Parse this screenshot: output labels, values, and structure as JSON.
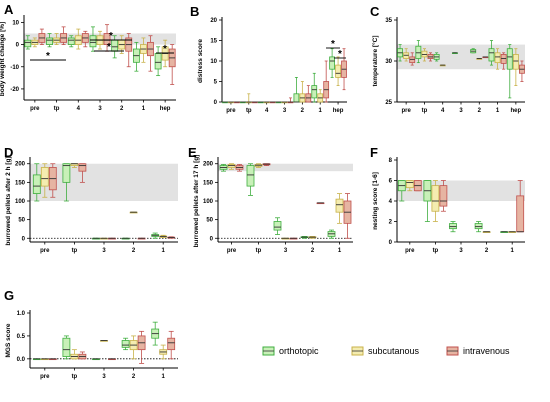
{
  "legend": [
    {
      "label": "orthotopic",
      "fill": "#c8f0b8",
      "stroke": "#3fae3f"
    },
    {
      "label": "subcutanous",
      "fill": "#f4ecb0",
      "stroke": "#c8b24a"
    },
    {
      "label": "intravenous",
      "fill": "#e6b4a2",
      "stroke": "#c0504d"
    }
  ],
  "chart_data": [
    {
      "panel": "A",
      "type": "box",
      "ylabel": "body weight change [%]",
      "ylim": [
        -25,
        12
      ],
      "yticks": [
        -20,
        -10,
        0,
        10
      ],
      "categories": [
        "pre",
        "tp",
        "4",
        "3",
        "2",
        "1",
        "hep"
      ],
      "band": [
        0,
        5
      ],
      "significance": [
        {
          "text": "*",
          "from": 0,
          "to": 0
        },
        {
          "text": "*",
          "from": 3,
          "to": 3
        },
        {
          "text": "*",
          "from": 3,
          "to": 3
        },
        {
          "text": "*",
          "from": 6,
          "to": 6
        }
      ],
      "series": [
        {
          "name": "orthotopic",
          "boxes": [
            [
              -2,
              -1,
              1,
              2,
              4
            ],
            [
              -1,
              0,
              2,
              3,
              5
            ],
            [
              -1,
              0,
              2,
              3,
              4
            ],
            [
              -3,
              -1,
              1,
              4,
              8
            ],
            [
              -6,
              -3,
              -1,
              2,
              4
            ],
            [
              -12,
              -8,
              -5,
              -2,
              1
            ],
            [
              -14,
              -11,
              -8,
              -4,
              -1
            ]
          ]
        },
        {
          "name": "subcutanous",
          "boxes": [
            [
              -1,
              0,
              1,
              2,
              3
            ],
            [
              0,
              1,
              2,
              3,
              5
            ],
            [
              -2,
              0,
              2,
              4,
              7
            ],
            [
              -2,
              0,
              2,
              4,
              6
            ],
            [
              -4,
              -2,
              0,
              2,
              4
            ],
            [
              -8,
              -4,
              -2,
              0,
              3
            ],
            [
              -10,
              -7,
              -4,
              -1,
              2
            ]
          ]
        },
        {
          "name": "intravenous",
          "boxes": [
            [
              0,
              1,
              3,
              5,
              7
            ],
            [
              0,
              1,
              3,
              5,
              8
            ],
            [
              -1,
              1,
              3,
              5,
              6
            ],
            [
              -3,
              0,
              2,
              5,
              9
            ],
            [
              -10,
              -3,
              0,
              3,
              5
            ],
            [
              -12,
              -5,
              -2,
              1,
              4
            ],
            [
              -18,
              -10,
              -6,
              -2,
              0
            ]
          ]
        }
      ]
    },
    {
      "panel": "B",
      "type": "box",
      "ylabel": "distress score",
      "ylim": [
        0,
        20
      ],
      "yticks": [
        0,
        5,
        10,
        15,
        20
      ],
      "categories": [
        "pre",
        "tp",
        "4",
        "3",
        "2",
        "1",
        "hep"
      ],
      "significance": [
        {
          "text": "*",
          "from": 6,
          "to": 6
        },
        {
          "text": "*",
          "from": 6,
          "to": 6
        }
      ],
      "series": [
        {
          "name": "orthotopic",
          "boxes": [
            [
              0,
              0,
              0,
              0,
              0
            ],
            [
              0,
              0,
              0,
              0,
              0
            ],
            [
              0,
              0,
              0,
              0,
              0
            ],
            [
              0,
              0,
              0,
              0,
              0
            ],
            [
              0,
              0,
              0,
              2,
              6
            ],
            [
              0,
              1,
              3,
              4,
              7
            ],
            [
              6,
              8,
              10,
              11,
              13
            ]
          ]
        },
        {
          "name": "subcutanous",
          "boxes": [
            [
              0,
              0,
              0,
              0,
              0
            ],
            [
              0,
              0,
              0,
              0,
              2
            ],
            [
              0,
              0,
              0,
              0,
              0
            ],
            [
              0,
              0,
              0,
              0,
              0
            ],
            [
              0,
              0,
              1,
              2,
              5
            ],
            [
              0,
              0,
              1,
              2,
              3
            ],
            [
              4,
              6,
              7,
              9,
              11
            ]
          ]
        },
        {
          "name": "intravenous",
          "boxes": [
            [
              0,
              0,
              0,
              0,
              0
            ],
            [
              0,
              0,
              0,
              0,
              0
            ],
            [
              0,
              0,
              0,
              0,
              0
            ],
            [
              0,
              0,
              0,
              0,
              1
            ],
            [
              0,
              0,
              1,
              2,
              4
            ],
            [
              0,
              1,
              3,
              5,
              10
            ],
            [
              3,
              6,
              8,
              10,
              13
            ]
          ]
        }
      ]
    },
    {
      "panel": "C",
      "type": "box",
      "ylabel": "temperature [°C]",
      "ylim": [
        25,
        35
      ],
      "yticks": [
        25,
        30,
        35
      ],
      "categories": [
        "pre",
        "tp",
        "4",
        "3",
        "2",
        "1",
        "hep"
      ],
      "band": [
        29,
        32
      ],
      "series": [
        {
          "name": "orthotopic",
          "boxes": [
            [
              30,
              30.5,
              31,
              31.5,
              32
            ],
            [
              29.8,
              30.3,
              31,
              31.8,
              32.5
            ],
            [
              30,
              30.2,
              30.5,
              30.8,
              31
            ],
            [
              31,
              31,
              31,
              31,
              31
            ],
            [
              31,
              31,
              31.2,
              31.4,
              31.5
            ],
            [
              29.5,
              30,
              31,
              31.5,
              32.5
            ],
            [
              25.5,
              29,
              30.5,
              31.5,
              32
            ]
          ]
        },
        {
          "name": "subcutanous",
          "boxes": [
            [
              30,
              30.3,
              30.7,
              31,
              31.5
            ],
            [
              30,
              30.5,
              30.8,
              31.2,
              31.5
            ],
            [
              29.5,
              29.5,
              29.5,
              29.5,
              29.5
            ],
            [
              null
            ],
            [
              30.3,
              30.3,
              30.3,
              30.3,
              30.3
            ],
            [
              29,
              29.8,
              30.5,
              31,
              31.5
            ],
            [
              27,
              29,
              30,
              30.8,
              31.5
            ]
          ]
        },
        {
          "name": "intravenous",
          "boxes": [
            [
              29.5,
              29.8,
              30.2,
              30.5,
              31
            ],
            [
              30,
              30.3,
              30.5,
              30.8,
              31
            ],
            [
              null
            ],
            [
              null
            ],
            [
              30.5,
              30.5,
              30.5,
              30.5,
              30.5
            ],
            [
              29,
              29.7,
              30.3,
              30.8,
              31
            ],
            [
              27.5,
              28.5,
              29,
              29.5,
              30
            ]
          ]
        }
      ]
    },
    {
      "panel": "D",
      "type": "box",
      "ylabel": "burrowed pellets after 2 h [g]",
      "ylim": [
        -10,
        210
      ],
      "yticks": [
        0,
        50,
        100,
        150,
        200
      ],
      "categories": [
        "pre",
        "tp",
        "3",
        "2",
        "1"
      ],
      "band": [
        100,
        200
      ],
      "series": [
        {
          "name": "orthotopic",
          "boxes": [
            [
              100,
              120,
              140,
              170,
              200
            ],
            [
              100,
              150,
              195,
              200,
              200
            ],
            [
              0,
              0,
              0,
              0,
              0
            ],
            [
              0,
              0,
              0,
              0,
              0
            ],
            [
              0,
              5,
              8,
              10,
              14
            ]
          ]
        },
        {
          "name": "subcutanous",
          "boxes": [
            [
              110,
              140,
              160,
              190,
              200
            ],
            [
              190,
              195,
              200,
              200,
              200
            ],
            [
              0,
              0,
              0,
              0,
              0
            ],
            [
              70,
              70,
              70,
              70,
              70
            ],
            [
              2,
              3,
              5,
              6,
              8
            ]
          ]
        },
        {
          "name": "intravenous",
          "boxes": [
            [
              110,
              130,
              160,
              190,
              200
            ],
            [
              150,
              180,
              195,
              200,
              200
            ],
            [
              0,
              0,
              0,
              0,
              0
            ],
            [
              0,
              0,
              0,
              0,
              0
            ],
            [
              0,
              1,
              2,
              3,
              4
            ]
          ]
        }
      ]
    },
    {
      "panel": "E",
      "type": "box",
      "ylabel": "burrowed pellets after 17 h [g]",
      "ylim": [
        -10,
        210
      ],
      "yticks": [
        0,
        50,
        100,
        150,
        200
      ],
      "categories": [
        "pre",
        "tp",
        "3",
        "2",
        "1"
      ],
      "band": [
        180,
        200
      ],
      "series": [
        {
          "name": "orthotopic",
          "boxes": [
            [
              180,
              185,
              190,
              195,
              198
            ],
            [
              115,
              140,
              170,
              195,
              200
            ],
            [
              10,
              22,
              30,
              45,
              55
            ],
            [
              0,
              2,
              3,
              4,
              5
            ],
            [
              0,
              5,
              12,
              18,
              22
            ]
          ]
        },
        {
          "name": "subcutanous",
          "boxes": [
            [
              185,
              190,
              195,
              198,
              200
            ],
            [
              190,
              193,
              196,
              198,
              200
            ],
            [
              0,
              0,
              0,
              0,
              0
            ],
            [
              0,
              2,
              3,
              4,
              5
            ],
            [
              40,
              70,
              90,
              105,
              120
            ]
          ]
        },
        {
          "name": "intravenous",
          "boxes": [
            [
              180,
              185,
              190,
              195,
              198
            ],
            [
              195,
              197,
              199,
              200,
              200
            ],
            [
              0,
              0,
              0,
              0,
              0
            ],
            [
              95,
              95,
              95,
              95,
              95
            ],
            [
              0,
              40,
              70,
              100,
              120
            ]
          ]
        }
      ]
    },
    {
      "panel": "F",
      "type": "box",
      "ylabel": "nesting score [1-6]",
      "ylim": [
        0,
        8
      ],
      "yticks": [
        0,
        2,
        4,
        6,
        8
      ],
      "categories": [
        "pre",
        "tp",
        "3",
        "2",
        "1"
      ],
      "band": [
        4,
        6
      ],
      "series": [
        {
          "name": "orthotopic",
          "boxes": [
            [
              4,
              5,
              5.5,
              6,
              6
            ],
            [
              2,
              4,
              5,
              6,
              6
            ],
            [
              1,
              1.3,
              1.5,
              1.8,
              2
            ],
            [
              1,
              1.3,
              1.5,
              1.8,
              2
            ],
            [
              1,
              1,
              1,
              1,
              1
            ]
          ]
        },
        {
          "name": "subcutanous",
          "boxes": [
            [
              5,
              5.3,
              5.8,
              6,
              6
            ],
            [
              2,
              3,
              4,
              5.5,
              6
            ],
            [
              null
            ],
            [
              1,
              1,
              1,
              1,
              1
            ],
            [
              1,
              1,
              1,
              1,
              1
            ]
          ]
        },
        {
          "name": "intravenous",
          "boxes": [
            [
              5,
              5,
              5.5,
              6,
              6
            ],
            [
              3,
              3.5,
              4,
              5.5,
              6
            ],
            [
              null
            ],
            [
              null
            ],
            [
              1,
              1,
              1,
              4.5,
              6
            ]
          ]
        }
      ]
    },
    {
      "panel": "G",
      "type": "box",
      "ylabel": "MGS score",
      "ylim": [
        -0.2,
        1.0
      ],
      "yticks": [
        0.0,
        0.5,
        1.0
      ],
      "categories": [
        "pre",
        "tp",
        "3",
        "2",
        "1"
      ],
      "series": [
        {
          "name": "orthotopic",
          "boxes": [
            [
              0,
              0,
              0,
              0,
              0
            ],
            [
              0,
              0.05,
              0.2,
              0.45,
              0.5
            ],
            [
              0,
              0,
              0,
              0,
              0
            ],
            [
              0.2,
              0.25,
              0.3,
              0.4,
              0.45
            ],
            [
              0.3,
              0.45,
              0.55,
              0.65,
              0.8
            ]
          ]
        },
        {
          "name": "subcutanous",
          "boxes": [
            [
              0,
              0,
              0,
              0,
              0
            ],
            [
              0,
              0,
              0.05,
              0.1,
              0.2
            ],
            [
              0.4,
              0.4,
              0.4,
              0.4,
              0.4
            ],
            [
              0,
              0.2,
              0.3,
              0.4,
              0.5
            ],
            [
              0,
              0.1,
              0.15,
              0.2,
              0.3
            ]
          ]
        },
        {
          "name": "intravenous",
          "boxes": [
            [
              0,
              0,
              0,
              0,
              0
            ],
            [
              0,
              0,
              0.05,
              0.1,
              0.15
            ],
            [
              0,
              0,
              0,
              0,
              0
            ],
            [
              -0.1,
              0.2,
              0.35,
              0.5,
              0.6
            ],
            [
              0,
              0.2,
              0.35,
              0.45,
              0.6
            ]
          ]
        }
      ]
    }
  ]
}
